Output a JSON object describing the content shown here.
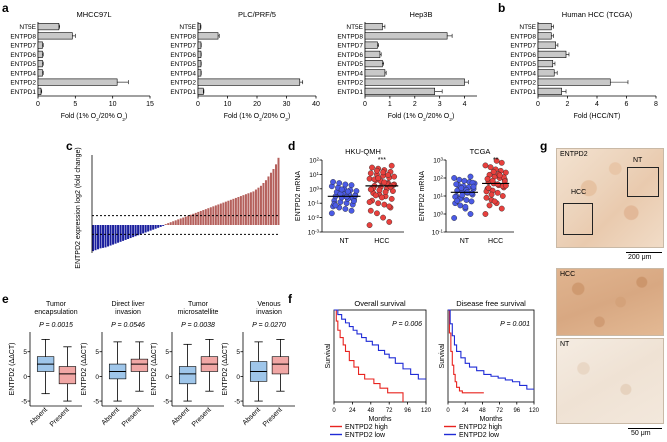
{
  "panels": {
    "a": "a",
    "b": "b",
    "c": "c",
    "d": "d",
    "e": "e",
    "f": "f",
    "g": "g"
  },
  "chart_data": [
    {
      "id": "a1",
      "type": "bar",
      "orientation": "horizontal",
      "title": "MHCC97L",
      "categories": [
        "NT5E",
        "ENTPD8",
        "ENTPD7",
        "ENTPD6",
        "ENTPD5",
        "ENTPD4",
        "ENTPD2",
        "ENTPD1"
      ],
      "values": [
        2.8,
        4.6,
        0.6,
        0.6,
        0.6,
        0.6,
        10.6,
        0.4
      ],
      "errors": [
        0.1,
        0.4,
        0.1,
        0.1,
        0.1,
        0.1,
        1.5,
        0.1
      ],
      "xlim": [
        0,
        15
      ],
      "xticks": [
        0,
        5,
        10,
        15
      ],
      "xlabel": "Fold (1% O2/20% O2)"
    },
    {
      "id": "a2",
      "type": "bar",
      "orientation": "horizontal",
      "title": "PLC/PRF/5",
      "categories": [
        "NT5E",
        "ENTPD8",
        "ENTPD7",
        "ENTPD6",
        "ENTPD5",
        "ENTPD4",
        "ENTPD2",
        "ENTPD1"
      ],
      "values": [
        0.8,
        6.8,
        1.0,
        1.0,
        1.0,
        1.0,
        34.5,
        1.8
      ],
      "errors": [
        0.2,
        0.4,
        0.1,
        0.1,
        0.1,
        0.1,
        1.0,
        0.2
      ],
      "xlim": [
        0,
        40
      ],
      "xticks": [
        0,
        10,
        20,
        30,
        40
      ],
      "xlabel": "Fold (1% O2/20% O2)"
    },
    {
      "id": "a3",
      "type": "bar",
      "orientation": "horizontal",
      "title": "Hep3B",
      "categories": [
        "NT5E",
        "ENTPD8",
        "ENTPD7",
        "ENTPD6",
        "ENTPD5",
        "ENTPD4",
        "ENTPD2",
        "ENTPD1"
      ],
      "values": [
        0.7,
        3.3,
        0.5,
        0.6,
        0.7,
        0.8,
        4.0,
        2.8
      ],
      "errors": [
        0.1,
        0.2,
        0.05,
        0.05,
        0.05,
        0.05,
        0.15,
        0.3
      ],
      "xlim": [
        0,
        4.5
      ],
      "xticks": [
        0,
        1,
        2,
        3,
        4
      ],
      "xlabel": "Fold (1% O2/20% O2)"
    },
    {
      "id": "b",
      "type": "bar",
      "orientation": "horizontal",
      "title": "Human HCC (TCGA)",
      "categories": [
        "NT5E",
        "ENTPD8",
        "ENTPD7",
        "ENTPD6",
        "ENTPD5",
        "ENTPD4",
        "ENTPD2",
        "ENTPD1"
      ],
      "values": [
        0.9,
        0.9,
        1.2,
        1.9,
        1.0,
        1.1,
        4.9,
        1.6
      ],
      "errors": [
        0.15,
        0.15,
        0.15,
        0.2,
        0.15,
        0.2,
        1.2,
        0.3
      ],
      "xlim": [
        0,
        8
      ],
      "xticks": [
        0,
        2,
        4,
        6,
        8
      ],
      "xlabel": "Fold (HCC/NT)"
    },
    {
      "id": "c",
      "type": "bar",
      "orientation": "vertical",
      "title": "",
      "ylabel": "ENTPD2 expression log2 (fold change)",
      "ylim": [
        -3,
        7.5
      ],
      "values": [
        -2.8,
        -2.7,
        -2.6,
        -2.5,
        -2.45,
        -2.4,
        -2.3,
        -2.2,
        -2.1,
        -2.0,
        -1.9,
        -1.8,
        -1.7,
        -1.6,
        -1.5,
        -1.4,
        -1.3,
        -1.2,
        -1.1,
        -1.0,
        -0.9,
        -0.8,
        -0.7,
        -0.6,
        -0.5,
        -0.4,
        -0.3,
        -0.2,
        -0.1,
        0.1,
        0.2,
        0.3,
        0.4,
        0.5,
        0.6,
        0.7,
        0.8,
        0.9,
        1.0,
        1.1,
        1.2,
        1.3,
        1.4,
        1.5,
        1.6,
        1.7,
        1.8,
        1.9,
        2.0,
        2.1,
        2.2,
        2.3,
        2.4,
        2.5,
        2.6,
        2.7,
        2.8,
        2.9,
        3.0,
        3.1,
        3.2,
        3.3,
        3.4,
        3.5,
        3.6,
        3.8,
        4.0,
        4.2,
        4.5,
        4.8,
        5.2,
        5.6,
        6.0,
        6.5,
        7.2
      ],
      "thresholds": [
        1,
        -1
      ]
    },
    {
      "id": "d1",
      "type": "scatter",
      "title": "HKU-QMH",
      "ylabel": "ENTPD2 mRNA",
      "yscale": "log",
      "yticks": [
        "10^2",
        "10^1",
        "10^0",
        "10^-1",
        "10^-2",
        "10^-3"
      ],
      "categories": [
        "NT",
        "HCC"
      ],
      "significance": "***",
      "NT": [
        0.02,
        0.03,
        0.04,
        0.05,
        0.06,
        0.08,
        0.1,
        0.12,
        0.15,
        0.18,
        0.2,
        0.25,
        0.3,
        0.35,
        0.4,
        0.5,
        0.6,
        0.7,
        0.8,
        1.0,
        1.2,
        1.5,
        1.8,
        2.0,
        2.5,
        3.0,
        0.22,
        0.28,
        0.45,
        0.09,
        0.14,
        0.65,
        0.9,
        0.07,
        0.33
      ],
      "HCC": [
        0.003,
        0.005,
        0.01,
        0.02,
        0.03,
        0.05,
        0.08,
        0.1,
        0.15,
        0.2,
        0.3,
        0.4,
        0.5,
        0.7,
        1.0,
        1.3,
        1.6,
        2.0,
        2.5,
        3.0,
        4.0,
        5.0,
        6.0,
        8.0,
        10,
        12,
        15,
        20,
        25,
        30,
        40,
        0.6,
        0.8,
        1.1,
        1.8,
        2.2,
        3.5,
        4.5,
        7.0,
        9.0,
        0.25,
        0.35,
        0.12,
        0.06,
        14,
        18,
        0.9,
        1.4,
        2.8,
        5.5
      ]
    },
    {
      "id": "d2",
      "type": "scatter",
      "title": "TCGA",
      "ylabel": "ENTPD2 mRNA",
      "yscale": "log",
      "yticks": [
        "10^3",
        "10^2",
        "10^1",
        "10^0",
        "10^-1"
      ],
      "categories": [
        "NT",
        "HCC"
      ],
      "significance": "**",
      "NT": [
        0.6,
        1,
        2,
        3,
        4,
        5,
        6,
        8,
        10,
        12,
        15,
        18,
        20,
        25,
        30,
        35,
        40,
        50,
        60,
        70,
        80,
        100,
        120,
        2.5,
        7,
        9,
        14,
        22,
        28,
        45,
        55,
        16,
        11,
        5.5,
        33
      ],
      "HCC": [
        1,
        2,
        4,
        6,
        8,
        10,
        15,
        20,
        25,
        30,
        40,
        50,
        60,
        80,
        100,
        120,
        150,
        200,
        250,
        300,
        400,
        500,
        700,
        900,
        12,
        18,
        35,
        45,
        70,
        90,
        110,
        160,
        220,
        28,
        65,
        140,
        5,
        3,
        38
      ]
    },
    {
      "id": "e1",
      "type": "box",
      "title": "Tumor encapsulation",
      "stat": "P = 0.0015",
      "ylabel": "ENTPD2 (ΔΔCT)",
      "ylim": [
        -6,
        9
      ],
      "yticks": [
        -5,
        0,
        5
      ],
      "categories": [
        "Absent",
        "Present"
      ],
      "boxes": [
        {
          "min": -3.5,
          "q1": 1.0,
          "median": 2.5,
          "q3": 4.0,
          "max": 7.5
        },
        {
          "min": -5.0,
          "q1": -1.5,
          "median": 0.5,
          "q3": 2.0,
          "max": 6.0
        }
      ]
    },
    {
      "id": "e2",
      "type": "box",
      "title": "Direct liver invasion",
      "stat": "P = 0.0546",
      "ylabel": "ENTPD2 (ΔΔCT)",
      "ylim": [
        -6,
        9
      ],
      "yticks": [
        -5,
        0,
        5
      ],
      "categories": [
        "Absent",
        "Present"
      ],
      "boxes": [
        {
          "min": -5.0,
          "q1": -0.5,
          "median": 1.0,
          "q3": 2.5,
          "max": 7.0
        },
        {
          "min": -3.0,
          "q1": 1.0,
          "median": 2.5,
          "q3": 3.5,
          "max": 7.0
        }
      ]
    },
    {
      "id": "e3",
      "type": "box",
      "title": "Tumor microsatellite",
      "stat": "P = 0.0038",
      "ylabel": "ENTPD2 (ΔΔCT)",
      "ylim": [
        -6,
        9
      ],
      "yticks": [
        -5,
        0,
        5
      ],
      "categories": [
        "Absent",
        "Present"
      ],
      "boxes": [
        {
          "min": -5.0,
          "q1": -1.5,
          "median": 0.5,
          "q3": 2.0,
          "max": 6.5
        },
        {
          "min": -3.0,
          "q1": 1.0,
          "median": 2.5,
          "q3": 4.0,
          "max": 7.5
        }
      ]
    },
    {
      "id": "e4",
      "type": "box",
      "title": "Venous invasion",
      "stat": "P = 0.0270",
      "ylabel": "ENTPD2 (ΔΔCT)",
      "ylim": [
        -6,
        9
      ],
      "yticks": [
        -5,
        0,
        5
      ],
      "categories": [
        "Absent",
        "Present"
      ],
      "boxes": [
        {
          "min": -5.0,
          "q1": -1.0,
          "median": 1.0,
          "q3": 3.0,
          "max": 7.0
        },
        {
          "min": -3.0,
          "q1": 0.5,
          "median": 2.5,
          "q3": 4.0,
          "max": 7.5
        }
      ]
    },
    {
      "id": "f1",
      "type": "line",
      "step": true,
      "title": "Overall survival",
      "stat": "P = 0.006",
      "xlabel": "Months",
      "ylabel": "Survival",
      "xticks": [
        0,
        24,
        48,
        72,
        96,
        120
      ],
      "series": [
        {
          "name": "ENTPD2 high",
          "color": "#e8231f",
          "x": [
            0,
            3,
            5,
            8,
            12,
            15,
            20,
            26,
            32,
            40,
            52,
            60,
            70,
            90
          ],
          "y": [
            1.0,
            0.88,
            0.78,
            0.7,
            0.62,
            0.55,
            0.45,
            0.38,
            0.3,
            0.25,
            0.2,
            0.15,
            0.1,
            0.0
          ]
        },
        {
          "name": "ENTPD2 low",
          "color": "#1f2bd6",
          "x": [
            0,
            5,
            10,
            15,
            20,
            25,
            30,
            36,
            42,
            50,
            58,
            66,
            72,
            80,
            90,
            100,
            110,
            120
          ],
          "y": [
            1.0,
            0.95,
            0.9,
            0.86,
            0.82,
            0.78,
            0.74,
            0.7,
            0.66,
            0.62,
            0.56,
            0.52,
            0.48,
            0.42,
            0.36,
            0.3,
            0.25,
            0.25
          ]
        }
      ]
    },
    {
      "id": "f2",
      "type": "line",
      "step": true,
      "title": "Disease free survival",
      "stat": "P = 0.001",
      "xlabel": "Months",
      "ylabel": "Survival",
      "xticks": [
        0,
        24,
        48,
        72,
        96,
        120
      ],
      "series": [
        {
          "name": "ENTPD2 high",
          "color": "#e8231f",
          "x": [
            0,
            2,
            4,
            6,
            8,
            10,
            12,
            16,
            20,
            30,
            50
          ],
          "y": [
            1.0,
            0.75,
            0.55,
            0.4,
            0.3,
            0.22,
            0.16,
            0.12,
            0.1,
            0.1,
            0.1
          ]
        },
        {
          "name": "ENTPD2 low",
          "color": "#1f2bd6",
          "x": [
            0,
            3,
            6,
            9,
            12,
            18,
            24,
            30,
            40,
            50,
            60,
            70,
            80,
            90,
            100,
            110,
            120
          ],
          "y": [
            1.0,
            0.85,
            0.72,
            0.62,
            0.55,
            0.48,
            0.42,
            0.38,
            0.34,
            0.3,
            0.28,
            0.26,
            0.24,
            0.22,
            0.18,
            0.14,
            0.14
          ]
        }
      ]
    }
  ],
  "histology": {
    "top_label": "ENTPD2",
    "box_labels": [
      "HCC",
      "NT"
    ],
    "top_scale": "200 μm",
    "mid_label": "HCC",
    "bottom_label": "NT",
    "bottom_scale": "50 μm"
  }
}
